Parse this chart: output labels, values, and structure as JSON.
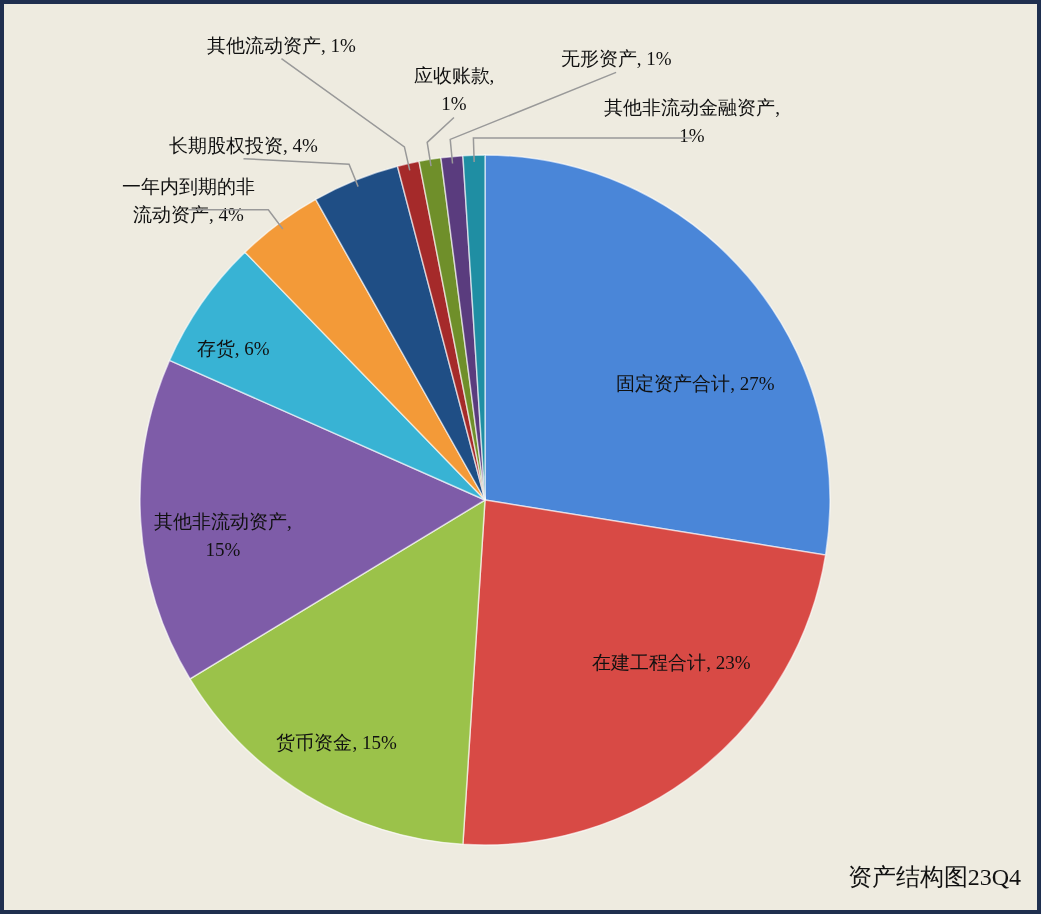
{
  "chart_data": {
    "type": "pie",
    "title": "资产结构图23Q4",
    "value_labels": [
      ", 27%",
      ", 23%",
      ", 15%",
      ",\n15%",
      ", 6%",
      ", 4%",
      ", 4%",
      ", 1%",
      ",\n1%",
      ", 1%",
      ",\n1%"
    ],
    "categories": [
      "固定资产合计",
      "在建工程合计",
      "货币资金",
      "其他非流动资产",
      "存货",
      "一年内到期的非流动资产",
      "长期股权投资",
      "其他流动资产",
      "应收账款",
      "无形资产",
      "其他非流动金融资产"
    ],
    "values": [
      27,
      23,
      15,
      15,
      6,
      4,
      4,
      1,
      1,
      1,
      1
    ],
    "colors": [
      "#4a86d8",
      "#d84a45",
      "#9bc24a",
      "#7e5ca8",
      "#38b3d4",
      "#f39a38",
      "#1f4e85",
      "#a52a2a",
      "#6f8f2a",
      "#5a3c7e",
      "#1f8ea3"
    ]
  }
}
